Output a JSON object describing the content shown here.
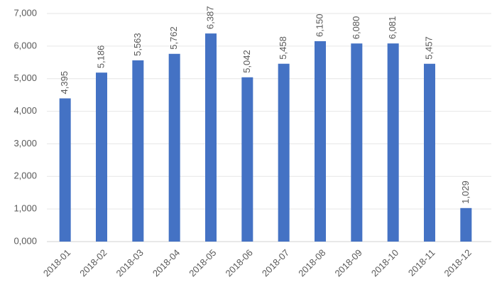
{
  "chart_data": {
    "type": "bar",
    "categories": [
      "2018-01",
      "2018-02",
      "2018-03",
      "2018-04",
      "2018-05",
      "2018-06",
      "2018-07",
      "2018-08",
      "2018-09",
      "2018-10",
      "2018-11",
      "2018-12"
    ],
    "values": [
      4395,
      5186,
      5563,
      5762,
      6387,
      5042,
      5458,
      6150,
      6080,
      6081,
      5457,
      1029
    ],
    "value_labels": [
      "4,395",
      "5,186",
      "5,563",
      "5,762",
      "6,387",
      "5,042",
      "5,458",
      "6,150",
      "6,080",
      "6,081",
      "5,457",
      "1,029"
    ],
    "color": "#4472c4",
    "ylim": [
      0,
      7000
    ],
    "yticks": [
      {
        "value": 0,
        "label": "0,000"
      },
      {
        "value": 1000,
        "label": "1,000"
      },
      {
        "value": 2000,
        "label": "2,000"
      },
      {
        "value": 3000,
        "label": "3,000"
      },
      {
        "value": 4000,
        "label": "4,000"
      },
      {
        "value": 5000,
        "label": "5,000"
      },
      {
        "value": 6000,
        "label": "6,000"
      },
      {
        "value": 7000,
        "label": "7,000"
      }
    ],
    "grid": true
  }
}
